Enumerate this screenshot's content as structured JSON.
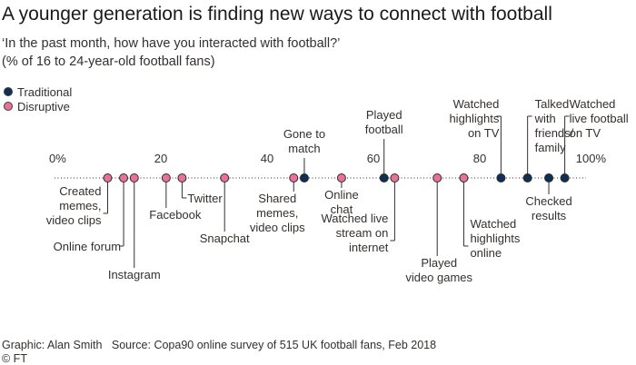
{
  "title": "A younger generation is finding new ways to connect with football",
  "subtitle": "‘In the past month, how have you interacted with football?’",
  "subtitle2": "(% of 16 to 24-year-old football fans)",
  "legend": [
    {
      "label": "Traditional",
      "color": "#0f2f54"
    },
    {
      "label": "Disruptive",
      "color": "#e8719b"
    }
  ],
  "footer": {
    "graphic": "Graphic: Alan Smith",
    "source": "Source: Copa90 online survey of 515 UK football fans, Feb 2018",
    "copyright": "© FT"
  },
  "colors": {
    "traditional": "#0f2f54",
    "disruptive": "#e8719b",
    "axis": "#33302e",
    "background": "#ffffff"
  },
  "chart_data": {
    "type": "scatter",
    "title": "A younger generation is finding new ways to connect with football",
    "xlim": [
      0,
      100
    ],
    "ticks": [
      "0%",
      "20",
      "40",
      "60",
      "80",
      "100%"
    ],
    "tick_values": [
      0,
      20,
      40,
      60,
      80,
      100
    ],
    "series": [
      {
        "name": "Traditional",
        "points": [
          {
            "label": "Gone to match",
            "value": 47
          },
          {
            "label": "Played football",
            "value": 62
          },
          {
            "label": "Watched highlights on TV",
            "value": 84
          },
          {
            "label": "Talked with friends/ family",
            "value": 89
          },
          {
            "label": "Checked results",
            "value": 93
          },
          {
            "label": "Watched live football on TV",
            "value": 96
          }
        ]
      },
      {
        "name": "Disruptive",
        "points": [
          {
            "label": "Created memes, video clips",
            "value": 10
          },
          {
            "label": "Online forum",
            "value": 13
          },
          {
            "label": "Instagram",
            "value": 15
          },
          {
            "label": "Facebook",
            "value": 21
          },
          {
            "label": "Twitter",
            "value": 24
          },
          {
            "label": "Snapchat",
            "value": 32
          },
          {
            "label": "Shared memes, video clips",
            "value": 45
          },
          {
            "label": "Online chat",
            "value": 54
          },
          {
            "label": "Watched live stream on internet",
            "value": 64
          },
          {
            "label": "Played video games",
            "value": 72
          },
          {
            "label": "Watched highlights online",
            "value": 77
          }
        ]
      }
    ]
  }
}
